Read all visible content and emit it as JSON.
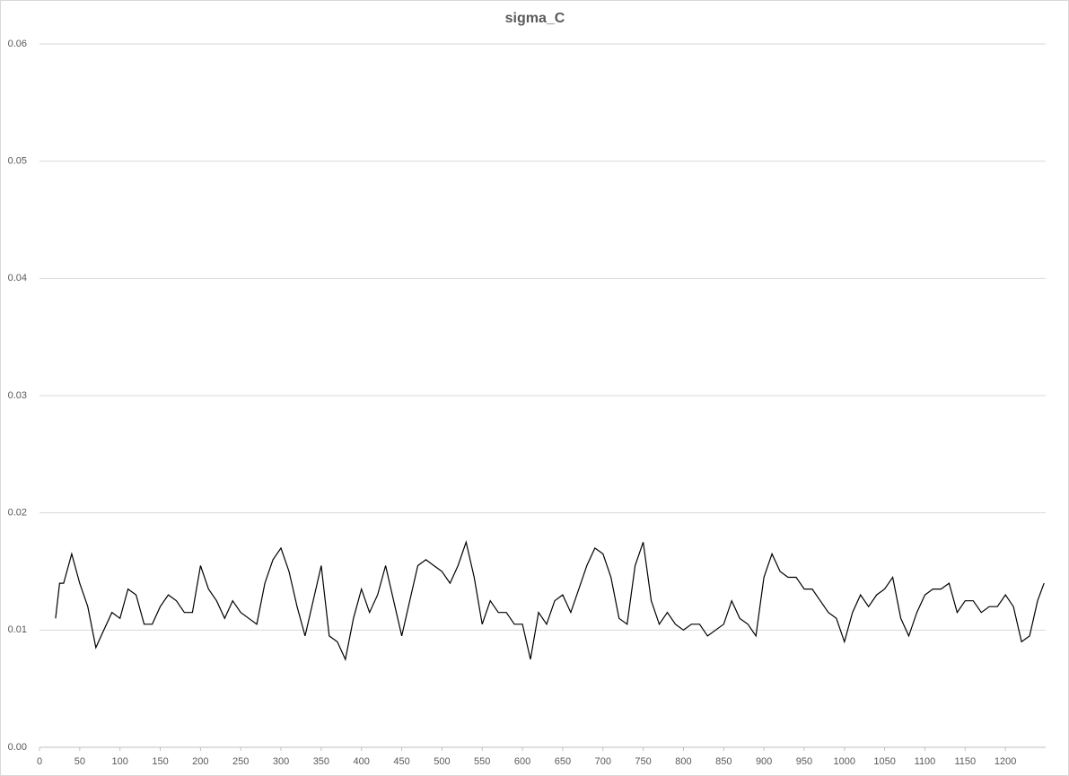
{
  "chart_data": {
    "type": "line",
    "title": "sigma_C",
    "x": [
      20,
      25,
      30,
      40,
      50,
      60,
      70,
      80,
      90,
      100,
      110,
      120,
      130,
      140,
      150,
      160,
      170,
      180,
      190,
      200,
      210,
      220,
      230,
      240,
      250,
      260,
      270,
      280,
      290,
      300,
      310,
      320,
      330,
      340,
      350,
      360,
      370,
      380,
      390,
      400,
      410,
      420,
      430,
      440,
      450,
      460,
      470,
      480,
      490,
      500,
      510,
      520,
      530,
      540,
      550,
      560,
      570,
      580,
      590,
      600,
      610,
      620,
      630,
      640,
      650,
      660,
      670,
      680,
      690,
      700,
      710,
      720,
      730,
      740,
      750,
      760,
      770,
      780,
      790,
      800,
      810,
      820,
      830,
      840,
      850,
      860,
      870,
      880,
      890,
      900,
      910,
      920,
      930,
      940,
      950,
      960,
      970,
      980,
      990,
      1000,
      1010,
      1020,
      1030,
      1040,
      1050,
      1060,
      1070,
      1080,
      1090,
      1100,
      1110,
      1120,
      1130,
      1140,
      1150,
      1160,
      1170,
      1180,
      1190,
      1200,
      1210,
      1220,
      1230,
      1240,
      1248
    ],
    "values": [
      0.011,
      0.014,
      0.014,
      0.0165,
      0.014,
      0.012,
      0.0085,
      0.01,
      0.0115,
      0.011,
      0.0135,
      0.013,
      0.0105,
      0.0105,
      0.012,
      0.013,
      0.0125,
      0.0115,
      0.0115,
      0.0155,
      0.0135,
      0.0125,
      0.011,
      0.0125,
      0.0115,
      0.011,
      0.0105,
      0.014,
      0.016,
      0.017,
      0.015,
      0.012,
      0.0095,
      0.0125,
      0.0155,
      0.0095,
      0.009,
      0.0075,
      0.011,
      0.0135,
      0.0115,
      0.013,
      0.0155,
      0.0125,
      0.0095,
      0.0125,
      0.0155,
      0.016,
      0.0155,
      0.015,
      0.014,
      0.0155,
      0.0175,
      0.0145,
      0.0105,
      0.0125,
      0.0115,
      0.0115,
      0.0105,
      0.0105,
      0.0075,
      0.0115,
      0.0105,
      0.0125,
      0.013,
      0.0115,
      0.0135,
      0.0155,
      0.017,
      0.0165,
      0.0145,
      0.011,
      0.0105,
      0.0155,
      0.0175,
      0.0125,
      0.0105,
      0.0115,
      0.0105,
      0.01,
      0.0105,
      0.0105,
      0.0095,
      0.01,
      0.0105,
      0.0125,
      0.011,
      0.0105,
      0.0095,
      0.0145,
      0.0165,
      0.015,
      0.0145,
      0.0145,
      0.0135,
      0.0135,
      0.0125,
      0.0115,
      0.011,
      0.009,
      0.0115,
      0.013,
      0.012,
      0.013,
      0.0135,
      0.0145,
      0.011,
      0.0095,
      0.0115,
      0.013,
      0.0135,
      0.0135,
      0.014,
      0.0115,
      0.0125,
      0.0125,
      0.0115,
      0.012,
      0.012,
      0.013,
      0.012,
      0.009,
      0.0095,
      0.0125,
      0.014
    ],
    "color": "#000000",
    "xlim": [
      0,
      1250
    ],
    "xticks": [
      0,
      50,
      100,
      150,
      200,
      250,
      300,
      350,
      400,
      450,
      500,
      550,
      600,
      650,
      700,
      750,
      800,
      850,
      900,
      950,
      1000,
      1050,
      1100,
      1150,
      1200
    ],
    "ylim": [
      0,
      0.06
    ],
    "yticks": [
      {
        "value": 0,
        "label": "0.00"
      },
      0.01,
      0.02,
      0.03,
      0.04,
      0.05,
      0.06
    ],
    "grid": true
  }
}
